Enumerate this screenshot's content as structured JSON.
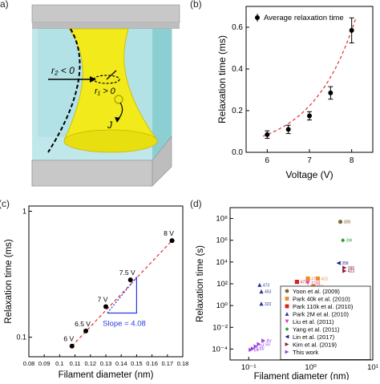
{
  "panels": {
    "a": "(a)",
    "b": "(b)",
    "c": "(c)",
    "d": "(d)"
  },
  "schematic": {
    "r2_label": "r₂ < 0",
    "r1_label": "r₁ > 0",
    "j_label": "J",
    "colors": {
      "fluid": "#a9dde0",
      "filament": "#f2ea1a",
      "wall": "#c8c8c8"
    }
  },
  "chart_data": [
    {
      "type": "scatter",
      "panel": "(b)",
      "xlabel": "Voltage (V)",
      "ylabel": "Relaxation time (ms)",
      "xlim": [
        5.5,
        8.5
      ],
      "ylim": [
        0,
        0.7
      ],
      "x_ticks": [
        "6",
        "7",
        "8"
      ],
      "y_ticks": [
        "0.0",
        "0.2",
        "0.4",
        "0.6"
      ],
      "legend": {
        "position": "top-right",
        "label": "Average relaxation time"
      },
      "x": [
        6,
        6.5,
        7,
        7.5,
        8
      ],
      "y": [
        0.085,
        0.11,
        0.175,
        0.285,
        0.585
      ],
      "yerr": [
        0.018,
        0.02,
        0.02,
        0.03,
        0.06
      ],
      "fit": "exponential (dashed red)"
    },
    {
      "type": "scatter",
      "panel": "(c)",
      "xlabel": "Filament diameter (nm)",
      "ylabel": "Relaxation time (ms)",
      "xscale": "linear",
      "yscale": "log",
      "xlim": [
        0.08,
        0.18
      ],
      "ylim": [
        0.07,
        1.1
      ],
      "x_ticks": [
        "0.08",
        "0.09",
        "0.1",
        "0.11",
        "0.12",
        "0.13",
        "0.14",
        "0.15",
        "0.16",
        "0.17",
        "0.18"
      ],
      "y_ticks": [
        "0.1",
        "1"
      ],
      "points": [
        {
          "x": 0.108,
          "y": 0.085,
          "label": "6 V"
        },
        {
          "x": 0.117,
          "y": 0.112,
          "label": "6.5 V"
        },
        {
          "x": 0.13,
          "y": 0.175,
          "label": "7 V"
        },
        {
          "x": 0.146,
          "y": 0.285,
          "label": "7.5 V"
        },
        {
          "x": 0.173,
          "y": 0.585,
          "label": "8 V"
        }
      ],
      "annotation": "Slope = 4.08"
    },
    {
      "type": "scatter",
      "panel": "(d)",
      "xlabel": "Filament diameter (nm)",
      "ylabel": "Relaxation time (s)",
      "xscale": "log",
      "yscale": "log",
      "x_ticks": [
        "10⁻¹",
        "10⁰",
        "10¹"
      ],
      "y_ticks": [
        "10⁻⁴",
        "10⁻²",
        "10⁰",
        "10²",
        "10⁴",
        "10⁶",
        "10⁸"
      ],
      "legend": {
        "position": "bottom-right"
      },
      "series": [
        {
          "name": "Yoon et al. (2009)",
          "color": "#7a6a3a",
          "marker": "circle",
          "points": [
            [
              3.0,
              50000000,
              "38B"
            ]
          ]
        },
        {
          "name": "Park 40k et al. (2010)",
          "color": "#f08a2a",
          "marker": "square",
          "points": [
            [
              0.9,
              300,
              "473"
            ],
            [
              1.3,
              300,
              "423"
            ],
            [
              1.1,
              60,
              "453"
            ]
          ]
        },
        {
          "name": "Park 110k et al. (2010)",
          "color": "#d62020",
          "marker": "square",
          "points": [
            [
              0.6,
              150,
              "473"
            ],
            [
              0.7,
              30,
              "453"
            ],
            [
              0.55,
              20,
              "433"
            ]
          ]
        },
        {
          "name": "Park 2M et al. (2010)",
          "color": "#2a3a9a",
          "marker": "triangle",
          "points": [
            [
              0.15,
              80,
              "473"
            ],
            [
              0.16,
              20,
              "453"
            ],
            [
              0.16,
              1.5,
              "323"
            ]
          ]
        },
        {
          "name": "Liu et al. (2011)",
          "color": "#e040c0",
          "marker": "triangle-down",
          "points": [
            [
              0.9,
              120,
              "T298"
            ]
          ]
        },
        {
          "name": "Yang et al. (2011)",
          "color": "#2aa02a",
          "marker": "diamond",
          "points": [
            [
              3.3,
              1000000,
              "3W"
            ]
          ]
        },
        {
          "name": "Lin et al. (2017)",
          "color": "#1e1e8a",
          "marker": "triangle-left",
          "points": [
            [
              2.8,
              8000,
              "358"
            ]
          ]
        },
        {
          "name": "Kim et al. (2019)",
          "color": "#8a1a3a",
          "marker": "triangle-right",
          "points": [
            [
              3.5,
              3000,
              "396"
            ],
            [
              3.5,
              1500,
              "423"
            ]
          ]
        },
        {
          "name": "This work",
          "color": "#9a40e0",
          "marker": "triangle-right",
          "points": [
            [
              0.108,
              8.5e-05,
              "6V"
            ],
            [
              0.117,
              0.00011,
              "6.5V"
            ],
            [
              0.13,
              0.000175,
              "7V"
            ],
            [
              0.146,
              0.000285,
              "7.5V"
            ],
            [
              0.173,
              0.000585,
              "8V"
            ]
          ]
        }
      ]
    }
  ]
}
